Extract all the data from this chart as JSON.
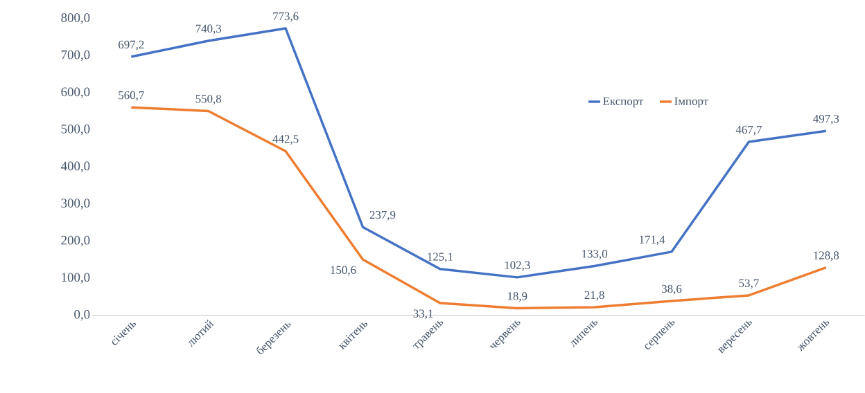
{
  "chart_data": {
    "type": "line",
    "categories": [
      "січень",
      "лютий",
      "березень",
      "квітень",
      "травень",
      "червень",
      "липень",
      "серпень",
      "вересень",
      "жовтень"
    ],
    "series": [
      {
        "name": "Експорт",
        "color": "#4472c4",
        "values": [
          697.2,
          740.3,
          773.6,
          237.9,
          125.1,
          102.3,
          133.0,
          171.4,
          467.7,
          497.3
        ],
        "value_labels": [
          "697,2",
          "740,3",
          "773,6",
          "237,9",
          "125,1",
          "102,3",
          "133,0",
          "171,4",
          "467,7",
          "497,3"
        ]
      },
      {
        "name": "Імпорт",
        "color": "#ed7d31",
        "values": [
          560.7,
          550.8,
          442.5,
          150.6,
          33.1,
          18.9,
          21.8,
          38.6,
          53.7,
          128.8
        ],
        "value_labels": [
          "560,7",
          "550,8",
          "442,5",
          "150,6",
          "33,1",
          "18,9",
          "21,8",
          "38,6",
          "53,7",
          "128,8"
        ]
      }
    ],
    "ylim": [
      0,
      800
    ],
    "yticks": [
      {
        "value": 0,
        "label": "0,0"
      },
      {
        "value": 100,
        "label": "100,0"
      },
      {
        "value": 200,
        "label": "200,0"
      },
      {
        "value": 300,
        "label": "300,0"
      },
      {
        "value": 400,
        "label": "400,0"
      },
      {
        "value": 500,
        "label": "500,0"
      },
      {
        "value": 600,
        "label": "600,0"
      },
      {
        "value": 700,
        "label": "700,0"
      },
      {
        "value": 800,
        "label": "800,0"
      }
    ],
    "legend": "top right",
    "marker": "none",
    "line_style": "solid",
    "grid": false
  }
}
